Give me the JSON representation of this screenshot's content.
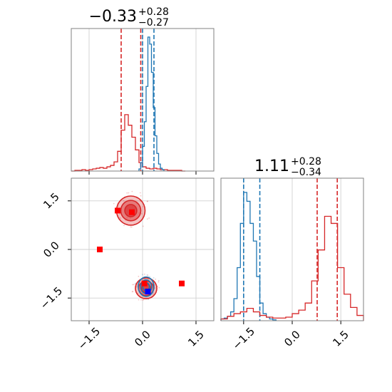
{
  "chart_data": [
    {
      "type": "histogram",
      "title": {
        "main": "−0.33",
        "upper": "+0.28",
        "lower": "−0.27"
      },
      "xlim": [
        -2.0,
        2.0
      ],
      "xticks": [
        -1.5,
        0.0,
        1.5
      ],
      "series": [
        {
          "name": "",
          "color": "#d62728",
          "bins": [
            -2.0,
            -1.9,
            -1.8,
            -1.7,
            -1.6,
            -1.5,
            -1.4,
            -1.3,
            -1.2,
            -1.1,
            -1.0,
            -0.9,
            -0.8,
            -0.7,
            -0.6,
            -0.5,
            -0.4,
            -0.3,
            -0.2,
            -0.1,
            0.0,
            0.1,
            0.2,
            0.3,
            0.4,
            0.5,
            0.6,
            0.7,
            0.8,
            0.9,
            1.0,
            1.1,
            1.2
          ],
          "counts": [
            0,
            1,
            1,
            2,
            1,
            2,
            3,
            4,
            5,
            4,
            6,
            8,
            13,
            28,
            58,
            80,
            65,
            48,
            30,
            12,
            6,
            4,
            3,
            4,
            3,
            2,
            2,
            1,
            1,
            1,
            1,
            0
          ],
          "quantile_lines": [
            -0.6,
            -0.05
          ]
        },
        {
          "name": "",
          "color": "#1f77b4",
          "bins": [
            -0.1,
            -0.05,
            0.0,
            0.05,
            0.1,
            0.15,
            0.2,
            0.25,
            0.3,
            0.35,
            0.4,
            0.45,
            0.5,
            0.55,
            0.6
          ],
          "counts": [
            3,
            12,
            35,
            70,
            120,
            190,
            180,
            140,
            90,
            50,
            25,
            10,
            4,
            2
          ],
          "quantile_lines": [
            0.0,
            0.32
          ]
        }
      ]
    },
    {
      "type": "scatter",
      "xlim": [
        -2.0,
        2.0
      ],
      "ylim": [
        -2.2,
        2.2
      ],
      "xticks": [
        -1.5,
        0.0,
        1.5
      ],
      "yticks": [
        -1.5,
        0.0,
        1.5
      ],
      "markers_red": [
        {
          "x": -0.7,
          "y": 1.2
        },
        {
          "x": -0.3,
          "y": 1.15
        },
        {
          "x": -1.2,
          "y": 0.0
        },
        {
          "x": 0.05,
          "y": -1.05
        },
        {
          "x": 1.1,
          "y": -1.05
        }
      ],
      "markers_blue": [
        {
          "x": 0.15,
          "y": -1.3
        }
      ],
      "clusters": [
        {
          "cx": -0.33,
          "cy": 1.2,
          "rx": 0.4,
          "ry": 0.45,
          "color": "#d62728"
        },
        {
          "cx": 0.1,
          "cy": -1.2,
          "rx": 0.3,
          "ry": 0.32,
          "color": "#d62728"
        },
        {
          "cx": 0.1,
          "cy": -1.15,
          "rx": 0.22,
          "ry": 0.3,
          "color": "#1f77b4"
        }
      ]
    },
    {
      "type": "histogram",
      "title": {
        "main": "1.11",
        "upper": "+0.28",
        "lower": "−0.34"
      },
      "xlim": [
        -2.2,
        2.2
      ],
      "xticks": [
        -1.5,
        0.0,
        1.5
      ],
      "series": [
        {
          "name": "",
          "color": "#1f77b4",
          "bins": [
            -2.2,
            -2.1,
            -2.0,
            -1.9,
            -1.8,
            -1.7,
            -1.6,
            -1.5,
            -1.4,
            -1.3,
            -1.2,
            -1.1,
            -1.0,
            -0.9,
            -0.8,
            -0.7,
            -0.6,
            -0.5
          ],
          "counts": [
            2,
            3,
            5,
            10,
            25,
            60,
            110,
            145,
            135,
            110,
            90,
            50,
            20,
            8,
            4,
            2,
            1
          ],
          "quantile_lines": [
            -1.5,
            -1.0
          ]
        },
        {
          "name": "",
          "color": "#d62728",
          "bins": [
            -2.2,
            -2.0,
            -1.8,
            -1.6,
            -1.4,
            -1.2,
            -1.0,
            -0.8,
            -0.6,
            -0.4,
            -0.2,
            0.0,
            0.2,
            0.4,
            0.6,
            0.8,
            1.0,
            1.2,
            1.4,
            1.6,
            1.8,
            2.0,
            2.2
          ],
          "counts": [
            2,
            5,
            8,
            10,
            14,
            10,
            6,
            4,
            3,
            3,
            4,
            8,
            12,
            20,
            45,
            80,
            118,
            110,
            60,
            30,
            15,
            6
          ],
          "quantile_lines": [
            0.77,
            1.39
          ]
        }
      ]
    }
  ]
}
